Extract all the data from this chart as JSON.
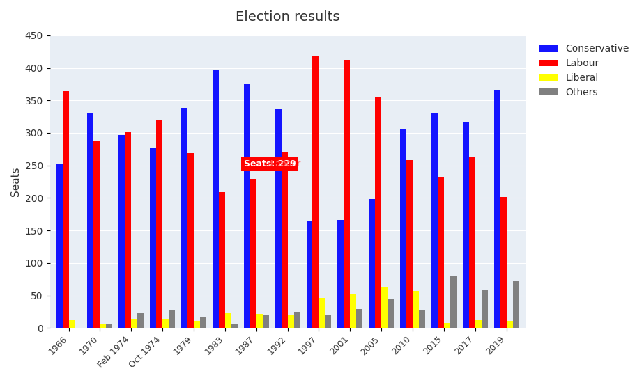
{
  "title": "Election results",
  "ylabel": "Seats",
  "years": [
    "1966",
    "1970",
    "Feb 1974",
    "Oct 1974",
    "1979",
    "1983",
    "1987",
    "1992",
    "1997",
    "2001",
    "2005",
    "2010",
    "2015",
    "2017",
    "2019"
  ],
  "conservative": [
    253,
    330,
    297,
    277,
    339,
    397,
    376,
    336,
    165,
    166,
    198,
    306,
    331,
    317,
    365
  ],
  "labour": [
    364,
    287,
    301,
    319,
    269,
    209,
    229,
    271,
    418,
    412,
    356,
    258,
    232,
    262,
    202
  ],
  "liberal": [
    12,
    6,
    14,
    13,
    11,
    23,
    22,
    20,
    46,
    52,
    62,
    57,
    8,
    12,
    11
  ],
  "others": [
    0,
    6,
    23,
    27,
    16,
    6,
    21,
    24,
    20,
    29,
    44,
    28,
    80,
    59,
    72
  ],
  "colors": {
    "conservative": "#1414ff",
    "labour": "#ff0000",
    "liberal": "#ffff00",
    "others": "#808080"
  },
  "tooltip_text": "Seats: 229",
  "tooltip_party": "Labour",
  "tooltip_year_idx": 6,
  "background_color": "#e8eef5",
  "ylim": [
    0,
    450
  ]
}
